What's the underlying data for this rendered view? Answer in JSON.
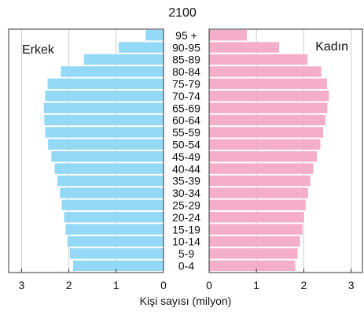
{
  "chart_data": {
    "type": "bar",
    "orientation": "horizontal",
    "title": "2100",
    "xlabel": "Kişi sayısı (milyon)",
    "ylabel": "",
    "xlim": [
      0,
      3
    ],
    "x_ticks": [
      "0",
      "1",
      "2",
      "3"
    ],
    "grid": true,
    "colors": {
      "male": "#93d9f5",
      "female": "#f5aeca",
      "frame": "#333333",
      "grid": "#cccccc"
    },
    "categories": [
      "95 +",
      "90-95",
      "85-89",
      "80-84",
      "75-79",
      "70-74",
      "65-69",
      "60-64",
      "55-59",
      "50-54",
      "45-49",
      "40-44",
      "35-39",
      "30-34",
      "25-29",
      "20-24",
      "15-19",
      "10-14",
      "5-9",
      "0-4"
    ],
    "series": [
      {
        "name": "Erkek",
        "side": "left",
        "color": "#93d9f5",
        "values": [
          0.38,
          0.95,
          1.68,
          2.17,
          2.45,
          2.5,
          2.53,
          2.52,
          2.5,
          2.44,
          2.37,
          2.3,
          2.24,
          2.19,
          2.15,
          2.1,
          2.07,
          2.03,
          1.98,
          1.91
        ]
      },
      {
        "name": "Kadın",
        "side": "right",
        "color": "#f5aeca",
        "values": [
          0.8,
          1.48,
          2.08,
          2.37,
          2.49,
          2.53,
          2.5,
          2.46,
          2.41,
          2.35,
          2.28,
          2.2,
          2.14,
          2.09,
          2.04,
          2.0,
          1.97,
          1.92,
          1.87,
          1.82
        ]
      }
    ]
  }
}
